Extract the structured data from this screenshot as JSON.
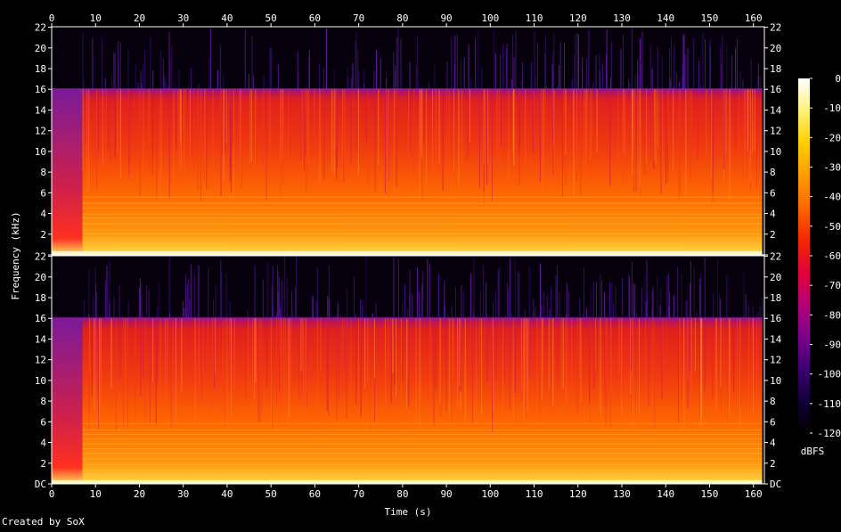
{
  "chart_data": {
    "type": "heatmap",
    "xlabel": "Time (s)",
    "ylabel": "Frequency (kHz)",
    "x_ticks": [
      0,
      10,
      20,
      30,
      40,
      50,
      60,
      70,
      80,
      90,
      100,
      110,
      120,
      130,
      140,
      150,
      160
    ],
    "xlim": [
      0,
      162.5
    ],
    "y_ticks": [
      0,
      2,
      4,
      6,
      8,
      10,
      12,
      14,
      16,
      18,
      20,
      22
    ],
    "y_tick_labels_top": [
      "",
      "2",
      "4",
      "6",
      "8",
      "10",
      "12",
      "14",
      "16",
      "18",
      "20",
      "22"
    ],
    "y_tick_labels_bottom": [
      "DC",
      "2",
      "4",
      "6",
      "8",
      "10",
      "12",
      "14",
      "16",
      "18",
      "20",
      "22"
    ],
    "ylim": [
      0,
      22.05
    ],
    "channels": 2,
    "lowpass_cutoff_khz": 16,
    "audio_duration_s": 162,
    "intro_segment_end_s": 7,
    "colorbar": {
      "label": "dBFS",
      "ticks": [
        0,
        -10,
        -20,
        -30,
        -40,
        -50,
        -60,
        -70,
        -80,
        -90,
        -100,
        -110,
        -120
      ],
      "range": [
        -120,
        0
      ],
      "colors": [
        "#000000",
        "#120038",
        "#3c0070",
        "#7a008c",
        "#b3007a",
        "#e0003c",
        "#f52a00",
        "#ff6a00",
        "#ff9e00",
        "#ffd000",
        "#fff27a",
        "#ffffff"
      ]
    }
  },
  "footer": {
    "credit": "Created by SoX"
  }
}
